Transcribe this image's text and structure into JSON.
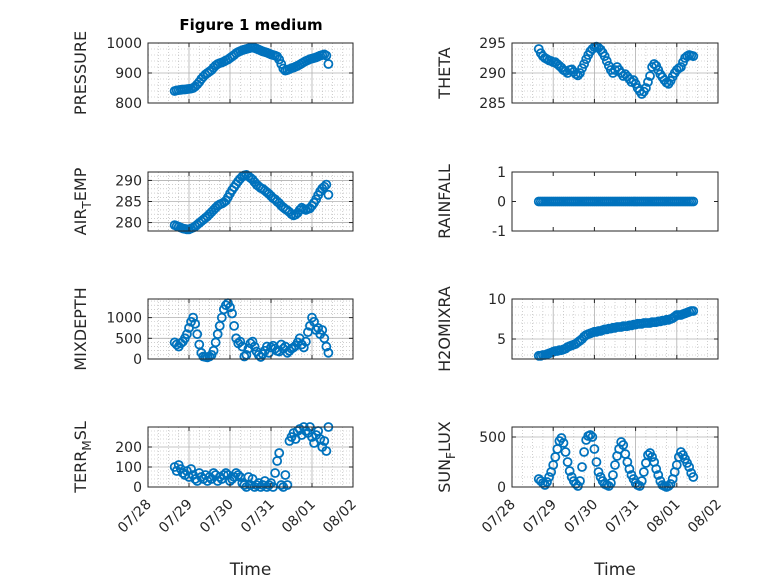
{
  "figure_title": "Figure 1 medium",
  "colors": {
    "marker": "#0072BD",
    "axis": "#262626",
    "grid": "#b0b0b0"
  },
  "time_ticks": [
    "07/28",
    "07/29",
    "07/30",
    "07/31",
    "08/01",
    "08/02"
  ],
  "time_label": "Time",
  "chart_data": [
    {
      "type": "scatter",
      "ylabel_main": "PRESSURE",
      "ylabel_sub": "",
      "ylabel_tail": "",
      "ylim": [
        800,
        1000
      ],
      "yticks": [
        "1000",
        "900",
        "800"
      ],
      "grid": true,
      "x": [
        0.65,
        0.7,
        0.75,
        0.8,
        0.85,
        0.9,
        0.95,
        1.0,
        1.05,
        1.1,
        1.15,
        1.2,
        1.25,
        1.3,
        1.35,
        1.4,
        1.45,
        1.5,
        1.55,
        1.6,
        1.65,
        1.7,
        1.75,
        1.8,
        1.85,
        1.9,
        1.95,
        2.0,
        2.05,
        2.1,
        2.15,
        2.2,
        2.25,
        2.3,
        2.35,
        2.4,
        2.45,
        2.5,
        2.55,
        2.6,
        2.65,
        2.7,
        2.75,
        2.8,
        2.85,
        2.9,
        2.95,
        3.0,
        3.05,
        3.1,
        3.15,
        3.2,
        3.25,
        3.3,
        3.35,
        3.4,
        3.45,
        3.5,
        3.55,
        3.6,
        3.65,
        3.7,
        3.75,
        3.8,
        3.85,
        3.9,
        3.95,
        4.0,
        4.05,
        4.1,
        4.15,
        4.2,
        4.25,
        4.3,
        4.35,
        4.4
      ],
      "y": [
        840,
        842,
        843,
        844,
        845,
        845,
        846,
        847,
        848,
        850,
        855,
        862,
        870,
        880,
        888,
        895,
        900,
        905,
        910,
        918,
        925,
        930,
        933,
        935,
        938,
        942,
        945,
        950,
        955,
        960,
        966,
        970,
        973,
        976,
        978,
        980,
        982,
        984,
        985,
        983,
        981,
        978,
        975,
        972,
        970,
        968,
        965,
        962,
        960,
        958,
        955,
        945,
        930,
        915,
        908,
        910,
        913,
        916,
        918,
        921,
        924,
        928,
        932,
        936,
        940,
        943,
        946,
        948,
        950,
        952,
        955,
        958,
        960,
        962,
        958,
        930
      ]
    },
    {
      "type": "scatter",
      "ylabel_main": "THETA",
      "ylabel_sub": "",
      "ylabel_tail": "",
      "ylim": [
        285,
        295
      ],
      "yticks": [
        "295",
        "290",
        "285"
      ],
      "grid": true,
      "x": [
        0.65,
        0.7,
        0.75,
        0.8,
        0.85,
        0.9,
        0.95,
        1.0,
        1.05,
        1.1,
        1.15,
        1.2,
        1.25,
        1.3,
        1.35,
        1.4,
        1.45,
        1.5,
        1.55,
        1.6,
        1.65,
        1.7,
        1.75,
        1.8,
        1.85,
        1.9,
        1.95,
        2.0,
        2.05,
        2.1,
        2.15,
        2.2,
        2.25,
        2.3,
        2.35,
        2.4,
        2.45,
        2.5,
        2.55,
        2.6,
        2.65,
        2.7,
        2.75,
        2.8,
        2.85,
        2.9,
        2.95,
        3.0,
        3.05,
        3.1,
        3.15,
        3.2,
        3.25,
        3.3,
        3.35,
        3.4,
        3.45,
        3.5,
        3.55,
        3.6,
        3.65,
        3.7,
        3.75,
        3.8,
        3.85,
        3.9,
        3.95,
        4.0,
        4.05,
        4.1,
        4.15,
        4.2,
        4.25,
        4.3,
        4.35,
        4.4
      ],
      "y": [
        294,
        293.3,
        292.8,
        292.5,
        292.3,
        292.1,
        292.0,
        291.8,
        291.8,
        291.5,
        291.2,
        290.9,
        290.5,
        290.3,
        290.0,
        290.5,
        290.6,
        290.2,
        289.8,
        289.6,
        290.0,
        290.8,
        291.5,
        292.3,
        293.0,
        293.6,
        294.0,
        294.3,
        294.4,
        294.2,
        293.9,
        293.4,
        292.8,
        292.0,
        291.2,
        290.5,
        290.0,
        290.5,
        291.0,
        290.5,
        290.0,
        289.5,
        289.8,
        289.4,
        289.0,
        288.5,
        288.8,
        288.2,
        287.5,
        287.0,
        286.5,
        286.9,
        287.5,
        288.5,
        289.5,
        291.0,
        291.5,
        291.2,
        290.5,
        289.8,
        289.3,
        288.8,
        288.4,
        288.2,
        288.7,
        289.4,
        290.0,
        290.5,
        290.8,
        291.0,
        291.8,
        292.5,
        292.8,
        293.0,
        292.9,
        292.8
      ]
    },
    {
      "type": "scatter",
      "ylabel_main": "AIR",
      "ylabel_sub": "T",
      "ylabel_tail": "EMP",
      "ylim": [
        278,
        292
      ],
      "yticks": [
        "290",
        "285",
        "280"
      ],
      "grid": true,
      "x": [
        0.65,
        0.7,
        0.75,
        0.8,
        0.85,
        0.9,
        0.95,
        1.0,
        1.05,
        1.1,
        1.15,
        1.2,
        1.25,
        1.3,
        1.35,
        1.4,
        1.45,
        1.5,
        1.55,
        1.6,
        1.65,
        1.7,
        1.75,
        1.8,
        1.85,
        1.9,
        1.95,
        2.0,
        2.05,
        2.1,
        2.15,
        2.2,
        2.25,
        2.3,
        2.35,
        2.4,
        2.45,
        2.5,
        2.55,
        2.6,
        2.65,
        2.7,
        2.75,
        2.8,
        2.85,
        2.9,
        2.95,
        3.0,
        3.05,
        3.1,
        3.15,
        3.2,
        3.25,
        3.3,
        3.35,
        3.4,
        3.45,
        3.5,
        3.55,
        3.6,
        3.65,
        3.7,
        3.75,
        3.8,
        3.85,
        3.9,
        3.95,
        4.0,
        4.05,
        4.1,
        4.15,
        4.2,
        4.25,
        4.3,
        4.35,
        4.4
      ],
      "y": [
        279.4,
        279.2,
        279.0,
        278.8,
        278.6,
        278.5,
        278.4,
        278.4,
        278.6,
        278.8,
        279.1,
        279.5,
        279.9,
        280.3,
        280.7,
        281.1,
        281.5,
        282.0,
        282.5,
        283.0,
        283.5,
        284.0,
        284.3,
        284.5,
        284.8,
        285.2,
        286.0,
        286.9,
        287.7,
        288.4,
        289.1,
        289.8,
        290.4,
        290.9,
        291.2,
        291.3,
        291.0,
        290.6,
        290.2,
        289.6,
        289.0,
        288.6,
        288.2,
        288.0,
        287.6,
        287.2,
        286.8,
        286.3,
        285.8,
        285.5,
        285.0,
        284.6,
        284.0,
        283.6,
        283.2,
        282.9,
        282.5,
        282.0,
        281.7,
        281.9,
        282.3,
        283.0,
        283.5,
        283.2,
        283.0,
        283.2,
        283.4,
        284.0,
        284.7,
        285.5,
        286.5,
        287.4,
        288.1,
        288.5,
        289.0,
        286.6
      ]
    },
    {
      "type": "scatter",
      "ylabel_main": "RAINFALL",
      "ylabel_sub": "",
      "ylabel_tail": "",
      "ylim": [
        -1,
        1
      ],
      "yticks": [
        "1",
        "0",
        "-1"
      ],
      "grid": false,
      "x": [
        0.65,
        0.7,
        0.75,
        0.8,
        0.85,
        0.9,
        0.95,
        1.0,
        1.05,
        1.1,
        1.15,
        1.2,
        1.25,
        1.3,
        1.35,
        1.4,
        1.45,
        1.5,
        1.55,
        1.6,
        1.65,
        1.7,
        1.75,
        1.8,
        1.85,
        1.9,
        1.95,
        2.0,
        2.05,
        2.1,
        2.15,
        2.2,
        2.25,
        2.3,
        2.35,
        2.4,
        2.45,
        2.5,
        2.55,
        2.6,
        2.65,
        2.7,
        2.75,
        2.8,
        2.85,
        2.9,
        2.95,
        3.0,
        3.05,
        3.1,
        3.15,
        3.2,
        3.25,
        3.3,
        3.35,
        3.4,
        3.45,
        3.5,
        3.55,
        3.6,
        3.65,
        3.7,
        3.75,
        3.8,
        3.85,
        3.9,
        3.95,
        4.0,
        4.05,
        4.1,
        4.15,
        4.2,
        4.25,
        4.3,
        4.35,
        4.4
      ],
      "y": [
        0,
        0,
        0,
        0,
        0,
        0,
        0,
        0,
        0,
        0,
        0,
        0,
        0,
        0,
        0,
        0,
        0,
        0,
        0,
        0,
        0,
        0,
        0,
        0,
        0,
        0,
        0,
        0,
        0,
        0,
        0,
        0,
        0,
        0,
        0,
        0,
        0,
        0,
        0,
        0,
        0,
        0,
        0,
        0,
        0,
        0,
        0,
        0,
        0,
        0,
        0,
        0,
        0,
        0,
        0,
        0,
        0,
        0,
        0,
        0,
        0,
        0,
        0,
        0,
        0,
        0,
        0,
        0,
        0,
        0,
        0,
        0,
        0,
        0,
        0,
        0
      ]
    },
    {
      "type": "scatter",
      "ylabel_main": "MIXDEPTH",
      "ylabel_sub": "",
      "ylabel_tail": "",
      "ylim": [
        0,
        1450
      ],
      "yticks": [
        "1000",
        "500",
        "0"
      ],
      "grid": true,
      "x": [
        0.65,
        0.7,
        0.75,
        0.8,
        0.85,
        0.9,
        0.95,
        1.0,
        1.05,
        1.1,
        1.15,
        1.2,
        1.25,
        1.3,
        1.35,
        1.4,
        1.45,
        1.5,
        1.55,
        1.6,
        1.65,
        1.7,
        1.75,
        1.8,
        1.85,
        1.9,
        1.95,
        2.0,
        2.05,
        2.1,
        2.15,
        2.2,
        2.25,
        2.3,
        2.35,
        2.4,
        2.45,
        2.5,
        2.55,
        2.6,
        2.65,
        2.7,
        2.75,
        2.8,
        2.85,
        2.9,
        2.95,
        3.0,
        3.05,
        3.1,
        3.15,
        3.2,
        3.25,
        3.3,
        3.35,
        3.4,
        3.45,
        3.5,
        3.55,
        3.6,
        3.65,
        3.7,
        3.75,
        3.8,
        3.85,
        3.9,
        3.95,
        4.0,
        4.05,
        4.1,
        4.15,
        4.2,
        4.25,
        4.3,
        4.35,
        4.4
      ],
      "y": [
        400,
        350,
        300,
        380,
        420,
        500,
        600,
        750,
        900,
        1000,
        850,
        600,
        350,
        150,
        60,
        50,
        40,
        60,
        100,
        200,
        400,
        600,
        800,
        1000,
        1200,
        1300,
        1350,
        1250,
        1100,
        800,
        500,
        380,
        420,
        300,
        60,
        100,
        250,
        380,
        420,
        300,
        180,
        100,
        50,
        120,
        200,
        300,
        150,
        280,
        320,
        250,
        200,
        180,
        350,
        250,
        300,
        150,
        200,
        250,
        280,
        320,
        400,
        500,
        350,
        280,
        420,
        650,
        800,
        1000,
        900,
        700,
        750,
        600,
        700,
        500,
        300,
        150
      ]
    },
    {
      "type": "scatter",
      "ylabel_main": "H2OMIXRA",
      "ylabel_sub": "",
      "ylabel_tail": "",
      "ylim": [
        2.5,
        10
      ],
      "yticks": [
        "10",
        "5"
      ],
      "grid": true,
      "x": [
        0.65,
        0.7,
        0.75,
        0.8,
        0.85,
        0.9,
        0.95,
        1.0,
        1.05,
        1.1,
        1.15,
        1.2,
        1.25,
        1.3,
        1.35,
        1.4,
        1.45,
        1.5,
        1.55,
        1.6,
        1.65,
        1.7,
        1.75,
        1.8,
        1.85,
        1.9,
        1.95,
        2.0,
        2.05,
        2.1,
        2.15,
        2.2,
        2.25,
        2.3,
        2.35,
        2.4,
        2.45,
        2.5,
        2.55,
        2.6,
        2.65,
        2.7,
        2.75,
        2.8,
        2.85,
        2.9,
        2.95,
        3.0,
        3.05,
        3.1,
        3.15,
        3.2,
        3.25,
        3.3,
        3.35,
        3.4,
        3.45,
        3.5,
        3.55,
        3.6,
        3.65,
        3.7,
        3.75,
        3.8,
        3.85,
        3.9,
        3.95,
        4.0,
        4.05,
        4.1,
        4.15,
        4.2,
        4.25,
        4.3,
        4.35,
        4.4
      ],
      "y": [
        2.9,
        2.9,
        3.0,
        3.0,
        3.1,
        3.2,
        3.3,
        3.4,
        3.5,
        3.5,
        3.6,
        3.6,
        3.7,
        3.8,
        4.0,
        4.1,
        4.2,
        4.3,
        4.4,
        4.6,
        4.8,
        5.0,
        5.3,
        5.5,
        5.6,
        5.7,
        5.8,
        5.9,
        5.9,
        6.0,
        6.0,
        6.1,
        6.2,
        6.2,
        6.3,
        6.3,
        6.4,
        6.4,
        6.5,
        6.5,
        6.5,
        6.6,
        6.6,
        6.6,
        6.7,
        6.7,
        6.8,
        6.8,
        6.9,
        6.9,
        6.9,
        7.0,
        7.0,
        7.0,
        7.0,
        7.1,
        7.1,
        7.1,
        7.2,
        7.2,
        7.3,
        7.3,
        7.4,
        7.4,
        7.5,
        7.6,
        7.8,
        8.0,
        8.0,
        8.0,
        8.1,
        8.2,
        8.3,
        8.4,
        8.5,
        8.5
      ]
    },
    {
      "type": "scatter",
      "ylabel_main": "TERR",
      "ylabel_sub": "M",
      "ylabel_tail": "SL",
      "ylim": [
        0,
        300
      ],
      "yticks": [
        "200",
        "100",
        "0"
      ],
      "grid": true,
      "x": [
        0.65,
        0.7,
        0.75,
        0.8,
        0.85,
        0.9,
        0.95,
        1.0,
        1.05,
        1.1,
        1.15,
        1.2,
        1.25,
        1.3,
        1.35,
        1.4,
        1.45,
        1.5,
        1.55,
        1.6,
        1.65,
        1.7,
        1.75,
        1.8,
        1.85,
        1.9,
        1.95,
        2.0,
        2.05,
        2.1,
        2.15,
        2.2,
        2.25,
        2.3,
        2.35,
        2.4,
        2.45,
        2.5,
        2.55,
        2.6,
        2.65,
        2.7,
        2.75,
        2.8,
        2.85,
        2.9,
        2.95,
        3.0,
        3.05,
        3.1,
        3.15,
        3.2,
        3.25,
        3.3,
        3.35,
        3.4,
        3.45,
        3.5,
        3.55,
        3.6,
        3.65,
        3.7,
        3.75,
        3.8,
        3.85,
        3.9,
        3.95,
        4.0,
        4.05,
        4.1,
        4.15,
        4.2,
        4.25,
        4.3,
        4.35,
        4.4
      ],
      "y": [
        100,
        80,
        110,
        90,
        70,
        60,
        80,
        50,
        90,
        60,
        40,
        30,
        70,
        50,
        40,
        60,
        30,
        50,
        40,
        70,
        60,
        30,
        50,
        40,
        60,
        70,
        60,
        30,
        40,
        50,
        70,
        60,
        50,
        20,
        10,
        0,
        50,
        10,
        40,
        0,
        10,
        20,
        0,
        10,
        30,
        0,
        10,
        20,
        0,
        70,
        130,
        170,
        10,
        0,
        60,
        10,
        230,
        250,
        270,
        240,
        280,
        290,
        260,
        300,
        280,
        270,
        300,
        250,
        220,
        260,
        280,
        240,
        200,
        230,
        180,
        300
      ]
    },
    {
      "type": "scatter",
      "ylabel_main": "SUN",
      "ylabel_sub": "F",
      "ylabel_tail": "LUX",
      "ylim": [
        0,
        600
      ],
      "yticks": [
        "500",
        "0"
      ],
      "grid": true,
      "x": [
        0.65,
        0.7,
        0.75,
        0.8,
        0.85,
        0.9,
        0.95,
        1.0,
        1.05,
        1.1,
        1.15,
        1.2,
        1.25,
        1.3,
        1.35,
        1.4,
        1.45,
        1.5,
        1.55,
        1.6,
        1.65,
        1.7,
        1.75,
        1.8,
        1.85,
        1.9,
        1.95,
        2.0,
        2.05,
        2.1,
        2.15,
        2.2,
        2.25,
        2.3,
        2.35,
        2.4,
        2.45,
        2.5,
        2.55,
        2.6,
        2.65,
        2.7,
        2.75,
        2.8,
        2.85,
        2.9,
        2.95,
        3.0,
        3.05,
        3.1,
        3.15,
        3.2,
        3.25,
        3.3,
        3.35,
        3.4,
        3.45,
        3.5,
        3.55,
        3.6,
        3.65,
        3.7,
        3.75,
        3.8,
        3.85,
        3.9,
        3.95,
        4.0,
        4.05,
        4.1,
        4.15,
        4.2,
        4.25,
        4.3,
        4.35,
        4.4
      ],
      "y": [
        80,
        60,
        40,
        20,
        50,
        100,
        150,
        220,
        300,
        380,
        460,
        490,
        440,
        350,
        250,
        160,
        100,
        60,
        30,
        10,
        60,
        200,
        350,
        470,
        510,
        520,
        500,
        380,
        250,
        150,
        100,
        60,
        30,
        20,
        10,
        40,
        120,
        220,
        310,
        380,
        450,
        420,
        330,
        250,
        180,
        120,
        80,
        40,
        20,
        10,
        60,
        150,
        240,
        320,
        340,
        300,
        250,
        180,
        120,
        60,
        20,
        10,
        0,
        10,
        30,
        80,
        150,
        220,
        300,
        350,
        320,
        280,
        240,
        200,
        140,
        100
      ]
    }
  ]
}
